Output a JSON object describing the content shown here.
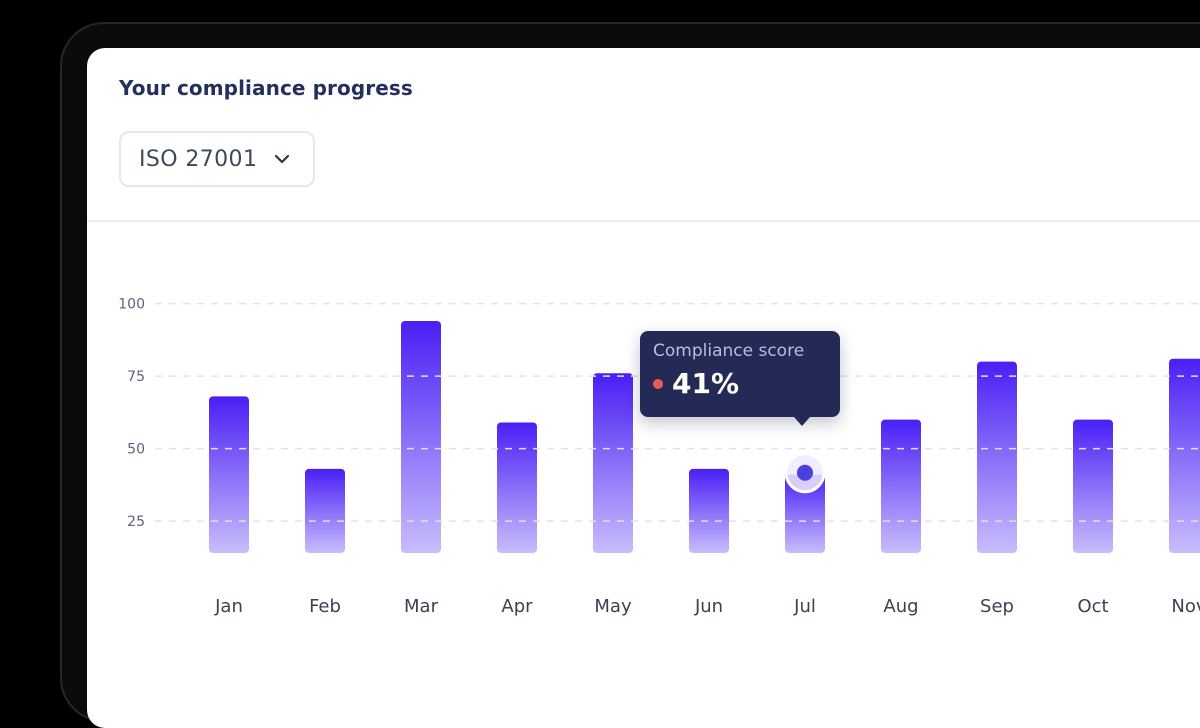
{
  "card": {
    "title": "Your compliance progress"
  },
  "framework_select": {
    "value": "ISO 27001",
    "icon": "chevron-down-icon"
  },
  "tooltip": {
    "label": "Compliance score",
    "value": "41%",
    "month": "Jul",
    "dot_color": "#f05a5a"
  },
  "colors": {
    "bar_top": "#4a1ff5",
    "bar_bottom": "#c8bdfc",
    "title": "#23305e",
    "tooltip_bg": "#232a56"
  },
  "chart_data": {
    "type": "bar",
    "categories": [
      "Jan",
      "Feb",
      "Mar",
      "Apr",
      "May",
      "Jun",
      "Jul",
      "Aug",
      "Sep",
      "Oct",
      "Nov"
    ],
    "values": [
      68,
      43,
      94,
      59,
      76,
      43,
      41,
      60,
      80,
      60,
      81
    ],
    "yticks": [
      25,
      50,
      75,
      100
    ],
    "ylim": [
      14,
      100
    ],
    "grid": true,
    "highlighted_category": "Jul",
    "title": "",
    "xlabel": "",
    "ylabel": ""
  }
}
